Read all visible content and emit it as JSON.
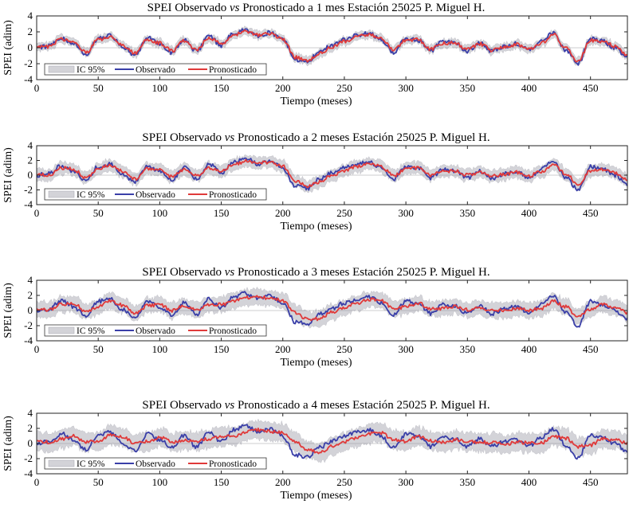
{
  "chart_data": [
    {
      "type": "line",
      "title": "SPEI Observado vs Pronosticado a 1 mes Estación 25025 P. Miguel H.",
      "title_parts": {
        "pre": "SPEI Observado ",
        "it": "vs",
        "post": " Pronosticado a 1 mes Estación 25025 P. Miguel H."
      },
      "xlabel": "Tiempo (meses)",
      "ylabel": "SPEI (adim)",
      "xlim": [
        0,
        480
      ],
      "ylim": [
        -4,
        4
      ],
      "xticks": [
        0,
        50,
        100,
        150,
        200,
        250,
        300,
        350,
        400,
        450
      ],
      "yticks": [
        -4,
        -2,
        0,
        2,
        4
      ],
      "legend": [
        "IC 95%",
        "Observado",
        "Pronosticado"
      ],
      "legend_location": "lower-left",
      "ci_halfwidth": 0.5,
      "forecast_lag": 1,
      "series": [
        {
          "name": "Observado",
          "color": "#3a3fa8",
          "x": [
            0,
            10,
            20,
            30,
            40,
            50,
            60,
            70,
            80,
            90,
            100,
            110,
            120,
            130,
            140,
            150,
            160,
            170,
            180,
            190,
            200,
            210,
            220,
            230,
            240,
            250,
            260,
            270,
            280,
            290,
            300,
            310,
            320,
            330,
            340,
            350,
            360,
            370,
            380,
            390,
            400,
            410,
            420,
            430,
            440,
            450,
            460,
            470,
            480
          ],
          "values": [
            0,
            0.2,
            1.3,
            0.5,
            -0.8,
            1.2,
            1.5,
            0.1,
            -0.9,
            1.3,
            0.5,
            -0.6,
            1.1,
            -0.5,
            1.5,
            0.3,
            1.8,
            2.3,
            1.5,
            1.9,
            1.0,
            -1.5,
            -1.8,
            -0.5,
            0.3,
            1.0,
            1.5,
            1.8,
            1.0,
            -0.6,
            1.2,
            1.0,
            -0.4,
            0.8,
            0.6,
            -0.4,
            0.6,
            -0.4,
            0.2,
            0.5,
            -0.3,
            0.8,
            1.9,
            -0.3,
            -2.0,
            1.2,
            0.8,
            0,
            -1.2
          ]
        },
        {
          "name": "Pronosticado",
          "color": "#e03a3a",
          "x": [
            0,
            10,
            20,
            30,
            40,
            50,
            60,
            70,
            80,
            90,
            100,
            110,
            120,
            130,
            140,
            150,
            160,
            170,
            180,
            190,
            200,
            210,
            220,
            230,
            240,
            250,
            260,
            270,
            280,
            290,
            300,
            310,
            320,
            330,
            340,
            350,
            360,
            370,
            380,
            390,
            400,
            410,
            420,
            430,
            440,
            450,
            460,
            470,
            480
          ],
          "values": [
            0.1,
            0.1,
            1.1,
            0.7,
            -0.6,
            1.0,
            1.4,
            0.3,
            -0.7,
            1.1,
            0.6,
            -0.4,
            0.9,
            -0.3,
            1.3,
            0.5,
            1.6,
            2.1,
            1.6,
            1.8,
            1.1,
            -1.2,
            -1.7,
            -0.7,
            0.1,
            0.8,
            1.4,
            1.7,
            1.1,
            -0.3,
            1.0,
            1.0,
            -0.2,
            0.6,
            0.6,
            -0.2,
            0.5,
            -0.3,
            0.1,
            0.4,
            -0.2,
            0.6,
            1.7,
            -0.1,
            -1.7,
            0.9,
            0.8,
            0.2,
            -0.9
          ]
        }
      ]
    },
    {
      "type": "line",
      "title": "SPEI Observado vs Pronosticado a 2 meses Estación 25025 P. Miguel H.",
      "title_parts": {
        "pre": "SPEI Observado ",
        "it": "vs",
        "post": " Pronosticado a 2 meses Estación 25025 P. Miguel H."
      },
      "xlabel": "Tiempo (meses)",
      "ylabel": "SPEI (adim)",
      "xlim": [
        0,
        480
      ],
      "ylim": [
        -4,
        4
      ],
      "xticks": [
        0,
        50,
        100,
        150,
        200,
        250,
        300,
        350,
        400,
        450
      ],
      "yticks": [
        -4,
        -2,
        0,
        2,
        4
      ],
      "legend": [
        "IC 95%",
        "Observado",
        "Pronosticado"
      ],
      "legend_location": "lower-left",
      "ci_halfwidth": 0.8,
      "forecast_lag": 2,
      "series": [
        {
          "name": "Observado",
          "color": "#3a3fa8",
          "x": [
            0,
            10,
            20,
            30,
            40,
            50,
            60,
            70,
            80,
            90,
            100,
            110,
            120,
            130,
            140,
            150,
            160,
            170,
            180,
            190,
            200,
            210,
            220,
            230,
            240,
            250,
            260,
            270,
            280,
            290,
            300,
            310,
            320,
            330,
            340,
            350,
            360,
            370,
            380,
            390,
            400,
            410,
            420,
            430,
            440,
            450,
            460,
            470,
            480
          ],
          "values": [
            0,
            0.2,
            1.3,
            0.5,
            -0.8,
            1.2,
            1.5,
            0.1,
            -0.9,
            1.3,
            0.5,
            -0.6,
            1.1,
            -0.5,
            1.5,
            0.3,
            1.8,
            2.3,
            1.5,
            1.9,
            1.0,
            -1.5,
            -1.8,
            -0.5,
            0.3,
            1.0,
            1.5,
            1.8,
            1.0,
            -0.6,
            1.2,
            1.0,
            -0.4,
            0.8,
            0.6,
            -0.4,
            0.6,
            -0.4,
            0.2,
            0.5,
            -0.3,
            0.8,
            1.9,
            -0.3,
            -2.0,
            1.2,
            0.8,
            0,
            -1.2
          ]
        },
        {
          "name": "Pronosticado",
          "color": "#e03a3a",
          "x": [
            0,
            10,
            20,
            30,
            40,
            50,
            60,
            70,
            80,
            90,
            100,
            110,
            120,
            130,
            140,
            150,
            160,
            170,
            180,
            190,
            200,
            210,
            220,
            230,
            240,
            250,
            260,
            270,
            280,
            290,
            300,
            310,
            320,
            330,
            340,
            350,
            360,
            370,
            380,
            390,
            400,
            410,
            420,
            430,
            440,
            450,
            460,
            470,
            480
          ],
          "values": [
            0.2,
            0.0,
            1.0,
            0.8,
            -0.4,
            0.8,
            1.4,
            0.5,
            -0.5,
            0.9,
            0.7,
            -0.2,
            0.8,
            -0.1,
            1.0,
            0.6,
            1.4,
            1.9,
            1.7,
            1.7,
            1.2,
            -0.8,
            -1.5,
            -0.9,
            0.0,
            0.6,
            1.2,
            1.6,
            1.2,
            -0.1,
            0.8,
            1.0,
            0.0,
            0.5,
            0.6,
            0.0,
            0.4,
            -0.1,
            0.1,
            0.4,
            -0.1,
            0.5,
            1.4,
            0.2,
            -1.3,
            0.6,
            0.8,
            0.3,
            -0.6
          ]
        }
      ]
    },
    {
      "type": "line",
      "title": "SPEI Observado vs Pronosticado a 3 meses Estación 25025 P. Miguel H.",
      "title_parts": {
        "pre": "SPEI Observado ",
        "it": "vs",
        "post": " Pronosticado a 3 meses Estación 25025 P. Miguel H."
      },
      "xlabel": "Tiempo (meses)",
      "ylabel": "SPEI (adim)",
      "xlim": [
        0,
        480
      ],
      "ylim": [
        -4,
        4
      ],
      "xticks": [
        0,
        50,
        100,
        150,
        200,
        250,
        300,
        350,
        400,
        450
      ],
      "yticks": [
        -4,
        -2,
        0,
        2,
        4
      ],
      "legend": [
        "IC 95%",
        "Observado",
        "Pronosticado"
      ],
      "legend_location": "lower-left",
      "ci_halfwidth": 1.0,
      "forecast_lag": 3,
      "series": [
        {
          "name": "Observado",
          "color": "#3a3fa8",
          "x": [
            0,
            10,
            20,
            30,
            40,
            50,
            60,
            70,
            80,
            90,
            100,
            110,
            120,
            130,
            140,
            150,
            160,
            170,
            180,
            190,
            200,
            210,
            220,
            230,
            240,
            250,
            260,
            270,
            280,
            290,
            300,
            310,
            320,
            330,
            340,
            350,
            360,
            370,
            380,
            390,
            400,
            410,
            420,
            430,
            440,
            450,
            460,
            470,
            480
          ],
          "values": [
            0,
            0.2,
            1.3,
            0.5,
            -0.8,
            1.2,
            1.5,
            0.1,
            -0.9,
            1.3,
            0.5,
            -0.6,
            1.1,
            -0.5,
            1.5,
            0.3,
            1.8,
            2.3,
            1.5,
            1.9,
            1.0,
            -1.5,
            -1.8,
            -0.5,
            0.3,
            1.0,
            1.5,
            1.8,
            1.0,
            -0.6,
            1.2,
            1.0,
            -0.4,
            0.8,
            0.6,
            -0.4,
            0.6,
            -0.4,
            0.2,
            0.5,
            -0.3,
            0.8,
            1.9,
            -0.3,
            -2.0,
            1.2,
            0.8,
            0,
            -1.2
          ]
        },
        {
          "name": "Pronosticado",
          "color": "#e03a3a",
          "x": [
            0,
            10,
            20,
            30,
            40,
            50,
            60,
            70,
            80,
            90,
            100,
            110,
            120,
            130,
            140,
            150,
            160,
            170,
            180,
            190,
            200,
            210,
            220,
            230,
            240,
            250,
            260,
            270,
            280,
            290,
            300,
            310,
            320,
            330,
            340,
            350,
            360,
            370,
            380,
            390,
            400,
            410,
            420,
            430,
            440,
            450,
            460,
            470,
            480
          ],
          "values": [
            0.3,
            0.1,
            0.8,
            0.9,
            -0.1,
            0.5,
            1.3,
            0.7,
            -0.3,
            0.6,
            0.8,
            0.0,
            0.6,
            0.1,
            0.8,
            0.8,
            1.2,
            1.7,
            1.8,
            1.6,
            1.3,
            -0.3,
            -1.2,
            -1.1,
            -0.2,
            0.4,
            1.0,
            1.5,
            1.3,
            0.2,
            0.5,
            1.0,
            0.2,
            0.3,
            0.6,
            0.1,
            0.3,
            0.0,
            0.0,
            0.3,
            0.0,
            0.3,
            1.2,
            0.5,
            -0.9,
            0.2,
            0.8,
            0.4,
            -0.3
          ]
        }
      ]
    },
    {
      "type": "line",
      "title": "SPEI Observado vs Pronosticado a 4 meses Estación 25025 P. Miguel H.",
      "title_parts": {
        "pre": "SPEI Observado ",
        "it": "vs",
        "post": " Pronosticado a 4 meses Estación 25025 P. Miguel H."
      },
      "xlabel": "Tiempo (meses)",
      "ylabel": "SPEI (adim)",
      "xlim": [
        0,
        480
      ],
      "ylim": [
        -4,
        4
      ],
      "xticks": [
        0,
        50,
        100,
        150,
        200,
        250,
        300,
        350,
        400,
        450
      ],
      "yticks": [
        -4,
        -2,
        0,
        2,
        4
      ],
      "legend": [
        "IC 95%",
        "Observado",
        "Pronosticado"
      ],
      "legend_location": "lower-left",
      "ci_halfwidth": 1.2,
      "forecast_lag": 4,
      "series": [
        {
          "name": "Observado",
          "color": "#3a3fa8",
          "x": [
            0,
            10,
            20,
            30,
            40,
            50,
            60,
            70,
            80,
            90,
            100,
            110,
            120,
            130,
            140,
            150,
            160,
            170,
            180,
            190,
            200,
            210,
            220,
            230,
            240,
            250,
            260,
            270,
            280,
            290,
            300,
            310,
            320,
            330,
            340,
            350,
            360,
            370,
            380,
            390,
            400,
            410,
            420,
            430,
            440,
            450,
            460,
            470,
            480
          ],
          "values": [
            0,
            0.2,
            1.3,
            0.5,
            -0.8,
            1.2,
            1.5,
            0.1,
            -0.9,
            1.3,
            0.5,
            -0.6,
            1.1,
            -0.5,
            1.5,
            0.3,
            1.8,
            2.3,
            1.5,
            1.9,
            1.0,
            -1.5,
            -1.8,
            -0.5,
            0.3,
            1.0,
            1.5,
            1.8,
            1.0,
            -0.6,
            1.2,
            1.0,
            -0.4,
            0.8,
            0.6,
            -0.4,
            0.6,
            -0.4,
            0.2,
            0.5,
            -0.3,
            0.8,
            1.9,
            -0.3,
            -2.0,
            1.2,
            0.8,
            0,
            -1.2
          ]
        },
        {
          "name": "Pronosticado",
          "color": "#e03a3a",
          "x": [
            0,
            10,
            20,
            30,
            40,
            50,
            60,
            70,
            80,
            90,
            100,
            110,
            120,
            130,
            140,
            150,
            160,
            170,
            180,
            190,
            200,
            210,
            220,
            230,
            240,
            250,
            260,
            270,
            280,
            290,
            300,
            310,
            320,
            330,
            340,
            350,
            360,
            370,
            380,
            390,
            400,
            410,
            420,
            430,
            440,
            450,
            460,
            470,
            480
          ],
          "values": [
            0.3,
            0.2,
            0.6,
            1.0,
            0.2,
            0.3,
            1.1,
            0.9,
            0.0,
            0.3,
            0.8,
            0.2,
            0.4,
            0.3,
            0.6,
            0.9,
            1.0,
            1.5,
            1.8,
            1.6,
            1.4,
            0.2,
            -0.8,
            -1.2,
            -0.4,
            0.2,
            0.8,
            1.3,
            1.4,
            0.5,
            0.3,
            0.9,
            0.4,
            0.2,
            0.5,
            0.3,
            0.2,
            0.1,
            -0.1,
            0.2,
            0.1,
            0.1,
            0.9,
            0.7,
            -0.4,
            -0.2,
            0.6,
            0.5,
            0.0
          ]
        }
      ]
    }
  ]
}
